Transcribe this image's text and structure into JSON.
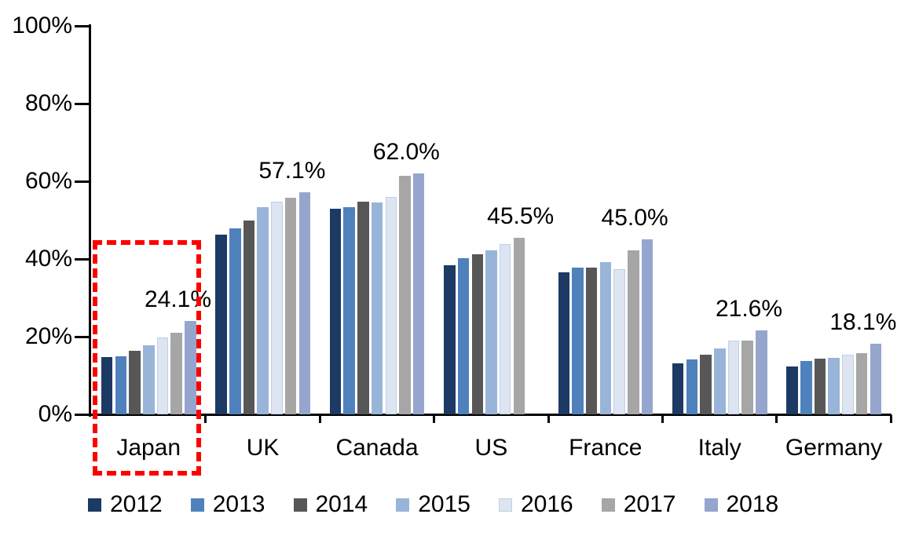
{
  "chart_data": {
    "type": "bar",
    "title": "",
    "xlabel": "",
    "ylabel": "",
    "ylim": [
      0,
      100
    ],
    "grid": false,
    "legend_position": "bottom",
    "y_ticks": [
      "0%",
      "20%",
      "40%",
      "60%",
      "80%",
      "100%"
    ],
    "y_tick_values": [
      0,
      20,
      40,
      60,
      80,
      100
    ],
    "categories": [
      "Japan",
      "UK",
      "Canada",
      "US",
      "France",
      "Italy",
      "Germany"
    ],
    "series": [
      {
        "name": "2012",
        "color": "#1C3A63",
        "values": [
          14.7,
          46.2,
          52.9,
          38.3,
          36.5,
          13.2,
          12.3
        ]
      },
      {
        "name": "2013",
        "color": "#4F81BD",
        "values": [
          15.0,
          47.8,
          53.3,
          40.2,
          37.8,
          14.1,
          13.8
        ]
      },
      {
        "name": "2014",
        "color": "#575757",
        "values": [
          16.4,
          50.0,
          54.8,
          41.3,
          37.7,
          15.4,
          14.4
        ]
      },
      {
        "name": "2015",
        "color": "#99B4D9",
        "values": [
          17.8,
          53.3,
          54.5,
          42.3,
          39.2,
          16.9,
          14.6
        ]
      },
      {
        "name": "2016",
        "color": "#DCE5F1",
        "edge": "#C2CFE3",
        "values": [
          19.9,
          54.8,
          55.9,
          43.8,
          37.4,
          19.0,
          15.3
        ]
      },
      {
        "name": "2017",
        "color": "#A6A6A6",
        "values": [
          21.1,
          55.8,
          61.5,
          45.5,
          42.3,
          19.1,
          15.8
        ]
      },
      {
        "name": "2018",
        "color": "#95A5CE",
        "values": [
          24.1,
          57.1,
          62.0,
          null,
          45.0,
          21.6,
          18.1
        ]
      }
    ],
    "annotations": [
      {
        "category": "Japan",
        "text": "24.1%"
      },
      {
        "category": "UK",
        "text": "57.1%"
      },
      {
        "category": "Canada",
        "text": "62.0%"
      },
      {
        "category": "US",
        "text": "45.5%"
      },
      {
        "category": "France",
        "text": "45.0%"
      },
      {
        "category": "Italy",
        "text": "21.6%"
      },
      {
        "category": "Germany",
        "text": "18.1%"
      }
    ],
    "highlight": {
      "category": "Japan",
      "style": "red-dashed-box",
      "color": "#FF0000"
    }
  }
}
